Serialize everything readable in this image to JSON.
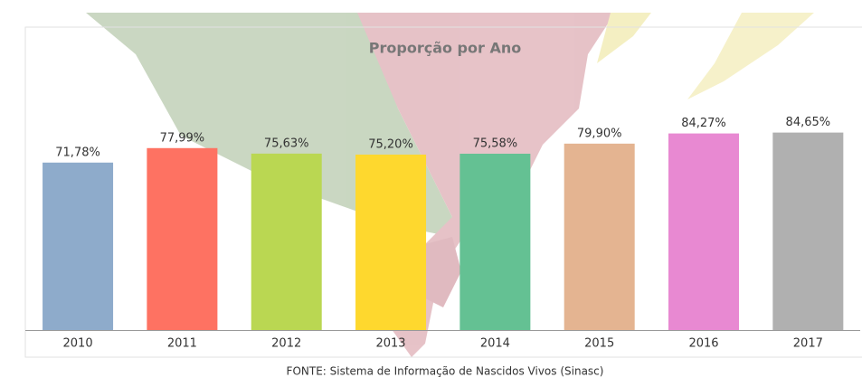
{
  "chart_data": {
    "type": "bar",
    "title": "Proporção por Ano",
    "categories": [
      "2010",
      "2011",
      "2012",
      "2013",
      "2014",
      "2015",
      "2016",
      "2017"
    ],
    "values": [
      71.78,
      77.99,
      75.63,
      75.2,
      75.58,
      79.9,
      84.27,
      84.65
    ],
    "value_labels": [
      "71,78%",
      "77,99%",
      "75,63%",
      "75,20%",
      "75,58%",
      "79,90%",
      "84,27%",
      "84,65%"
    ],
    "colors": [
      "#8eabcb",
      "#fe7262",
      "#bad752",
      "#fed82e",
      "#64c193",
      "#e4b491",
      "#e889d2",
      "#b0b0b0"
    ],
    "ylim": [
      0,
      100
    ],
    "source": "FONTE: Sistema de Informação de Nascidos Vivos (Sinasc)"
  }
}
